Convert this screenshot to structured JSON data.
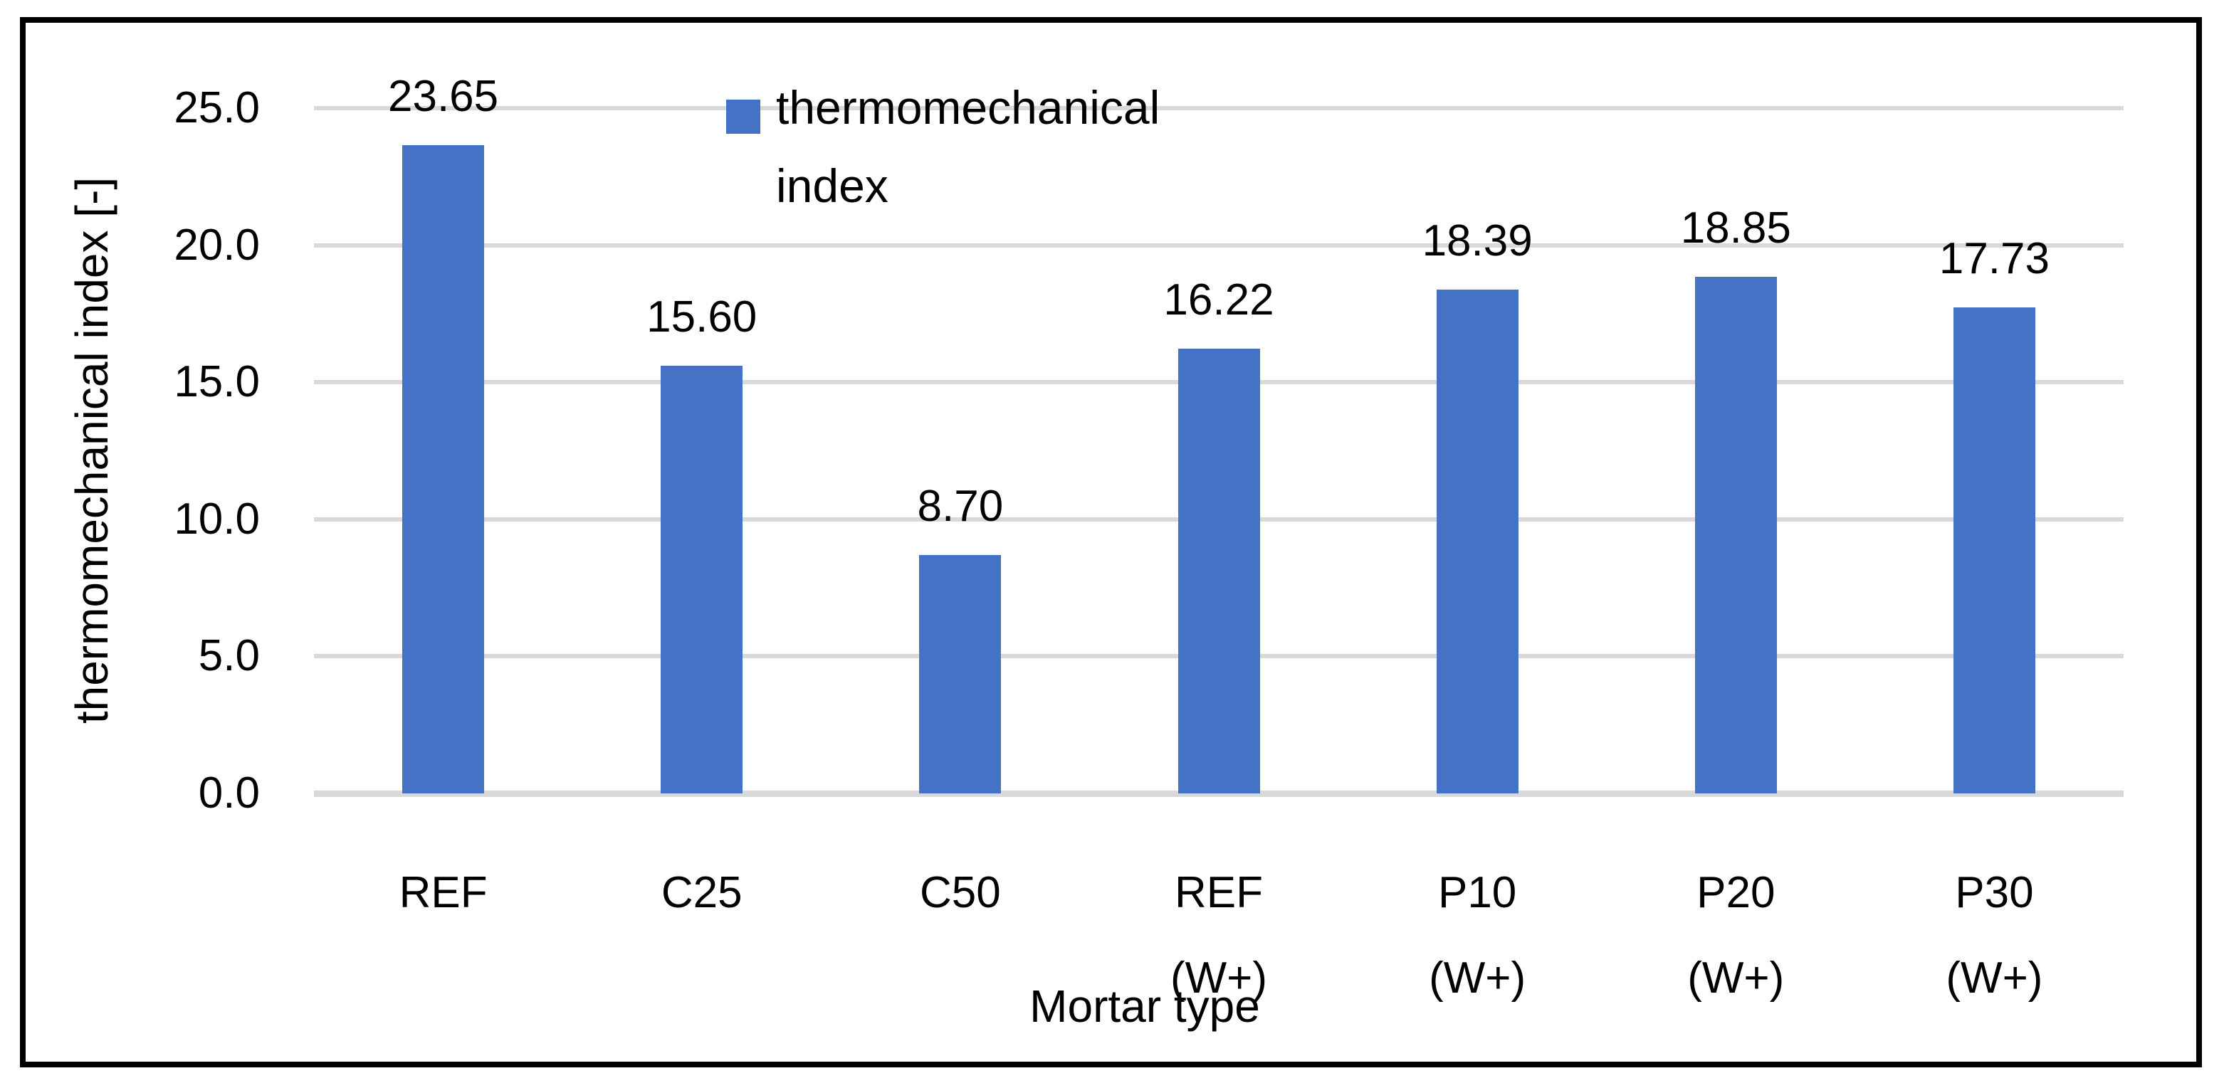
{
  "legend": {
    "line1": "thermomechanical",
    "line2": "index"
  },
  "axes": {
    "y_title": "thermomechanical index [-]",
    "x_title": "Mortar type"
  },
  "colors": {
    "bar": "#4472C4",
    "gridline": "#D9D9D9",
    "axis_line": "#D9D9D9",
    "border": "#000000",
    "text": "#000000",
    "background": "#FFFFFF"
  },
  "chart_data": {
    "type": "bar",
    "title": "",
    "xlabel": "Mortar type",
    "ylabel": "thermomechanical index [-]",
    "ylim": [
      0,
      25
    ],
    "grid": true,
    "legend_position": "top-center",
    "legend_entries": [
      "thermomechanical index"
    ],
    "y_ticks": [
      0,
      5,
      10,
      15,
      20,
      25
    ],
    "y_tick_labels": [
      "0.0",
      "5.0",
      "10.0",
      "15.0",
      "20.0",
      "25.0"
    ],
    "categories": [
      "REF",
      "C25",
      "C50",
      "REF (W+)",
      "P10 (W+)",
      "P20 (W+)",
      "P30 (W+)"
    ],
    "category_lines": [
      [
        "REF"
      ],
      [
        "C25"
      ],
      [
        "C50"
      ],
      [
        "REF",
        "(W+)"
      ],
      [
        "P10",
        "(W+)"
      ],
      [
        "P20",
        "(W+)"
      ],
      [
        "P30",
        "(W+)"
      ]
    ],
    "series": [
      {
        "name": "thermomechanical index",
        "color": "#4472C4",
        "values": [
          23.65,
          15.6,
          8.7,
          16.22,
          18.39,
          18.85,
          17.73
        ],
        "value_labels": [
          "23.65",
          "15.60",
          "8.70",
          "16.22",
          "18.39",
          "18.85",
          "17.73"
        ]
      }
    ]
  }
}
